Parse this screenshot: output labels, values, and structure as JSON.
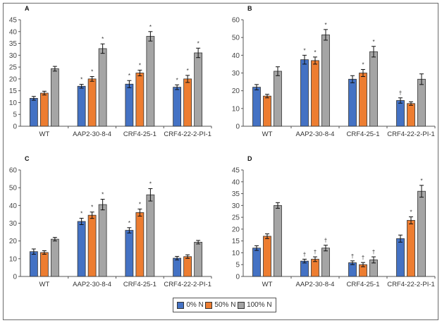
{
  "legend": [
    {
      "label": "0% N",
      "color": "#4472C4"
    },
    {
      "label": "50% N",
      "color": "#ED7D31"
    },
    {
      "label": "100% N",
      "color": "#A5A5A5"
    }
  ],
  "chart_data": [
    {
      "type": "bar",
      "title": "A",
      "categories": [
        "WT",
        "AAP2-30-8-4",
        "CRF4-25-1",
        "CRF4-22-2-PI-1"
      ],
      "ylim": [
        0,
        45
      ],
      "yticks": [
        0,
        5,
        10,
        15,
        20,
        25,
        30,
        35,
        40,
        45
      ],
      "series": [
        {
          "name": "0% N",
          "values": [
            11.8,
            16.9,
            17.8,
            16.5
          ],
          "errors": [
            0.8,
            0.8,
            1.5,
            1.0
          ],
          "markers": [
            "",
            "*",
            "*",
            "*"
          ]
        },
        {
          "name": "50% N",
          "values": [
            14.0,
            20.0,
            22.5,
            20.0
          ],
          "errors": [
            0.8,
            1.0,
            1.2,
            1.5
          ],
          "markers": [
            "",
            "*",
            "*",
            "*"
          ]
        },
        {
          "name": "100% N",
          "values": [
            24.3,
            32.8,
            38.0,
            31.0
          ],
          "errors": [
            1.0,
            2.0,
            2.0,
            2.0
          ],
          "markers": [
            "",
            "*",
            "*",
            "*"
          ]
        }
      ]
    },
    {
      "type": "bar",
      "title": "B",
      "categories": [
        "WT",
        "AAP2-30-8-4",
        "CRF4-25-1",
        "CRF4-22-2-PI-1"
      ],
      "ylim": [
        0,
        60
      ],
      "yticks": [
        0,
        10,
        20,
        30,
        40,
        50,
        60
      ],
      "series": [
        {
          "name": "0% N",
          "values": [
            22.0,
            37.5,
            26.5,
            14.5
          ],
          "errors": [
            1.5,
            2.5,
            2.0,
            1.5
          ],
          "markers": [
            "",
            "*",
            "",
            "†"
          ]
        },
        {
          "name": "50% N",
          "values": [
            17.0,
            37.0,
            30.0,
            12.8
          ],
          "errors": [
            1.0,
            2.0,
            2.0,
            1.0
          ],
          "markers": [
            "",
            "*",
            "*",
            ""
          ]
        },
        {
          "name": "100% N",
          "values": [
            31.0,
            51.5,
            42.0,
            26.5
          ],
          "errors": [
            2.5,
            3.0,
            3.0,
            3.0
          ],
          "markers": [
            "",
            "*",
            "*",
            ""
          ]
        }
      ]
    },
    {
      "type": "bar",
      "title": "C",
      "categories": [
        "WT",
        "AAP2-30-8-4",
        "CRF4-25-1",
        "CRF4-22-2-PI-1"
      ],
      "ylim": [
        0,
        60
      ],
      "yticks": [
        0,
        10,
        20,
        30,
        40,
        50,
        60
      ],
      "series": [
        {
          "name": "0% N",
          "values": [
            14.0,
            31.0,
            26.0,
            10.3
          ],
          "errors": [
            1.5,
            1.8,
            1.5,
            1.0
          ],
          "markers": [
            "",
            "*",
            "*",
            ""
          ]
        },
        {
          "name": "50% N",
          "values": [
            13.5,
            34.5,
            36.0,
            11.2
          ],
          "errors": [
            1.0,
            1.8,
            2.0,
            1.0
          ],
          "markers": [
            "",
            "*",
            "*",
            ""
          ]
        },
        {
          "name": "100% N",
          "values": [
            21.0,
            40.5,
            46.0,
            19.3
          ],
          "errors": [
            1.0,
            3.0,
            3.5,
            1.0
          ],
          "markers": [
            "",
            "*",
            "*",
            ""
          ]
        }
      ]
    },
    {
      "type": "bar",
      "title": "D",
      "categories": [
        "WT",
        "AAP2-30-8-4",
        "CRF4-25-1",
        "CRF4-22-2-PI-1"
      ],
      "ylim": [
        0,
        45
      ],
      "yticks": [
        0,
        5,
        10,
        15,
        20,
        25,
        30,
        35,
        40,
        45
      ],
      "series": [
        {
          "name": "0% N",
          "values": [
            12.0,
            6.5,
            5.8,
            16.0
          ],
          "errors": [
            1.0,
            0.8,
            0.8,
            1.5
          ],
          "markers": [
            "",
            "†",
            "†",
            ""
          ]
        },
        {
          "name": "50% N",
          "values": [
            17.0,
            7.3,
            5.0,
            23.7
          ],
          "errors": [
            1.0,
            1.0,
            0.9,
            1.5
          ],
          "markers": [
            "",
            "†",
            "†",
            "*"
          ]
        },
        {
          "name": "100% N",
          "values": [
            30.0,
            12.0,
            7.0,
            36.0
          ],
          "errors": [
            1.2,
            1.2,
            1.3,
            2.5
          ],
          "markers": [
            "",
            "†",
            "†",
            "*"
          ]
        }
      ]
    }
  ]
}
